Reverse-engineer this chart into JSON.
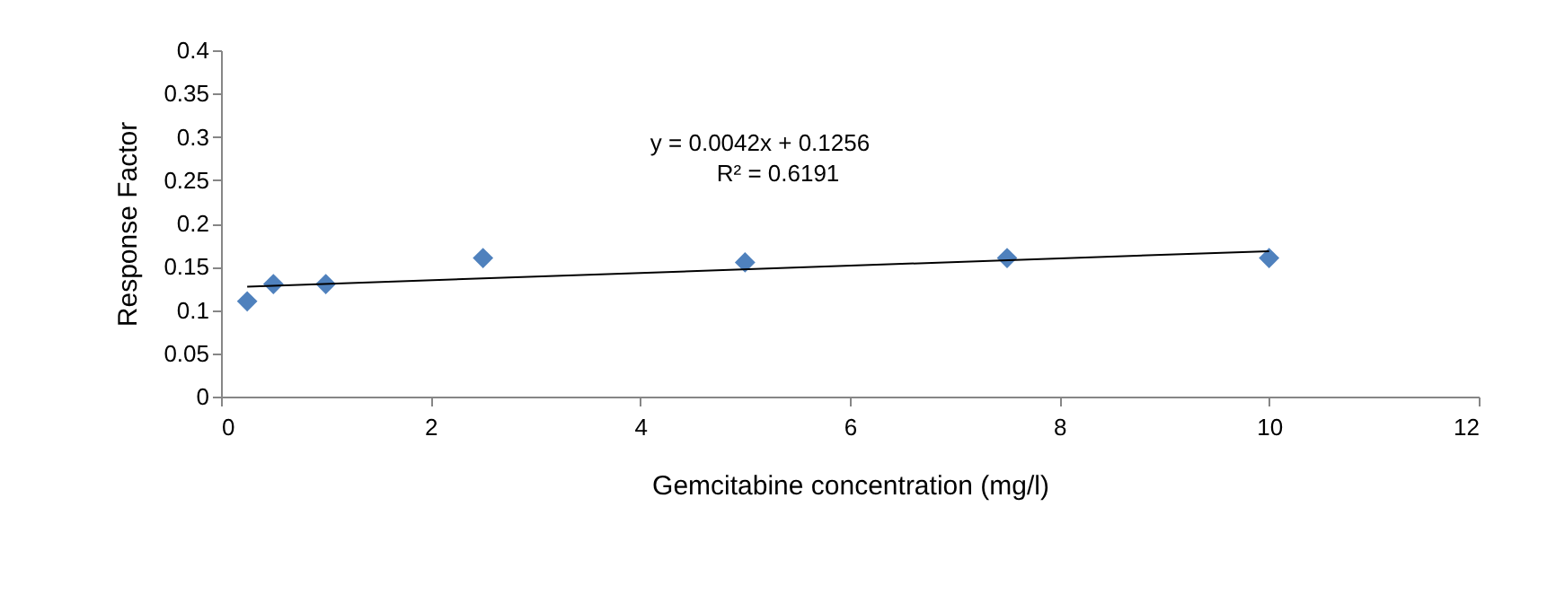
{
  "chart_data": {
    "type": "scatter",
    "xlabel": "Gemcitabine concentration (mg/l)",
    "ylabel": "Response Factor",
    "x": [
      0.25,
      0.5,
      1,
      2.5,
      5,
      7.5,
      10
    ],
    "series": [
      {
        "color": "#4f81bd",
        "marker": "diamond",
        "values": [
          0.11,
          0.13,
          0.13,
          0.16,
          0.155,
          0.16,
          0.16
        ]
      },
      {
        "type": "line",
        "color": "#000000",
        "marker": "none",
        "x": [
          0.25,
          10
        ],
        "values": [
          0.127,
          0.168
        ]
      }
    ],
    "xlim": [
      0,
      12
    ],
    "xticks": [
      0,
      2,
      4,
      6,
      8,
      10,
      12
    ],
    "ylim": [
      0,
      0.4
    ],
    "yticks": [
      0,
      0.05,
      0.1,
      0.15,
      0.2,
      0.25,
      0.3,
      0.35,
      0.4
    ],
    "grid": false,
    "annotations": [
      "y = 0.0042x + 0.1256",
      "R² = 0.6191"
    ]
  }
}
